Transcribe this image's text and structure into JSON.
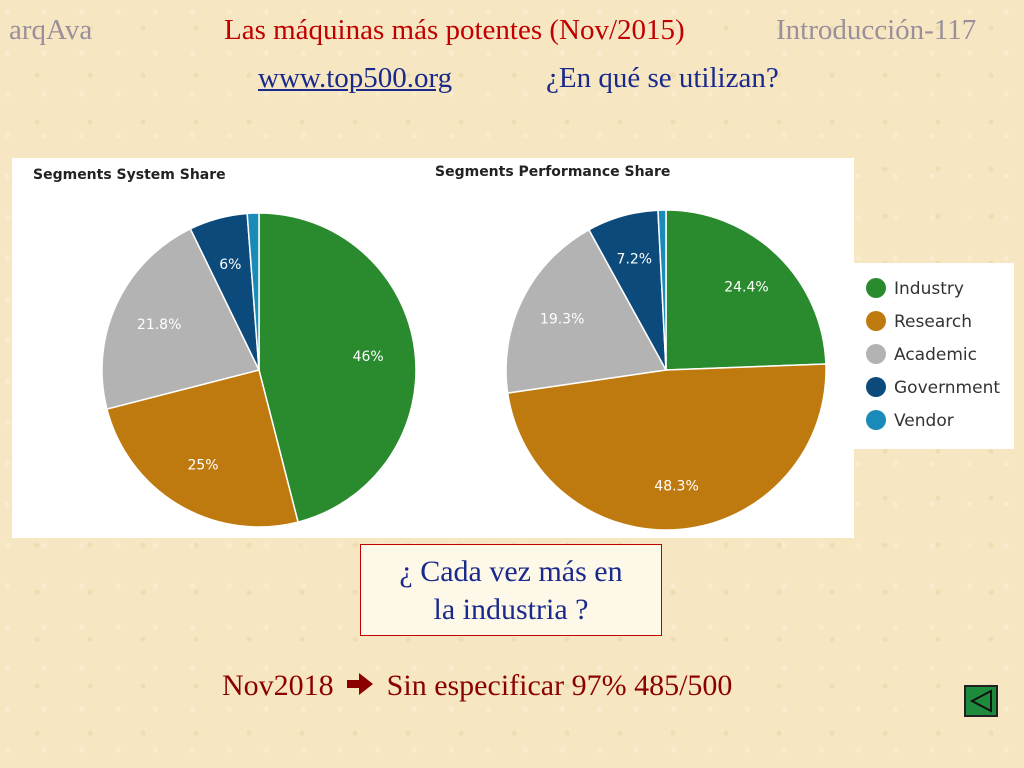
{
  "header": {
    "course": "arqAva",
    "title": "Las máquinas más potentes (Nov/2015)",
    "section": "Introducción-117",
    "link": "www.top500.org",
    "question": "¿En qué se utilizan?"
  },
  "callout": {
    "line1": "¿ Cada vez más en",
    "line2": "la industria ?"
  },
  "footer": {
    "date": "Nov2018",
    "arrow_icon": "arrow-right-icon",
    "text": "Sin especificar 97%  485/500"
  },
  "chart_data": [
    {
      "type": "pie",
      "title": "Segments System Share",
      "categories": [
        "Industry",
        "Research",
        "Academic",
        "Government",
        "Vendor"
      ],
      "values": [
        46,
        25,
        21.8,
        6,
        1.2
      ],
      "labels": [
        "46%",
        "25%",
        "21.8%",
        "6%",
        ""
      ],
      "colors": [
        "#2a8a2e",
        "#bf7a0f",
        "#b3b3b3",
        "#0b4a7a",
        "#1a8ab8"
      ],
      "legend": "right"
    },
    {
      "type": "pie",
      "title": "Segments Performance Share",
      "categories": [
        "Industry",
        "Research",
        "Academic",
        "Government",
        "Vendor"
      ],
      "values": [
        24.4,
        48.3,
        19.3,
        7.2,
        0.8
      ],
      "labels": [
        "24.4%",
        "48.3%",
        "19.3%",
        "7.2%",
        ""
      ],
      "colors": [
        "#2a8a2e",
        "#bf7a0f",
        "#b3b3b3",
        "#0b4a7a",
        "#1a8ab8"
      ],
      "legend": "right"
    }
  ],
  "legend": {
    "items": [
      {
        "label": "Industry",
        "color": "#2a8a2e"
      },
      {
        "label": "Research",
        "color": "#bf7a0f"
      },
      {
        "label": "Academic",
        "color": "#b3b3b3"
      },
      {
        "label": "Government",
        "color": "#0b4a7a"
      },
      {
        "label": "Vendor",
        "color": "#1a8ab8"
      }
    ]
  },
  "nav": {
    "back_icon": "back-arrow-icon"
  }
}
